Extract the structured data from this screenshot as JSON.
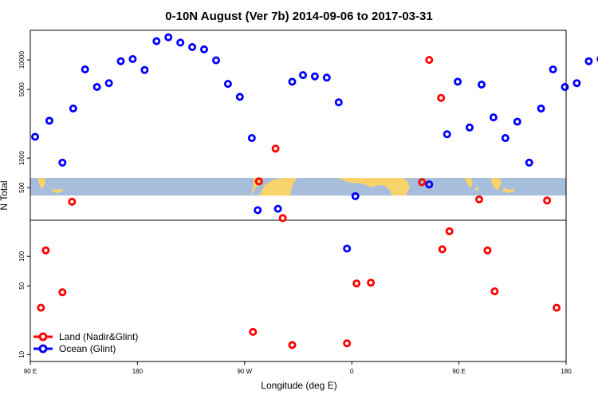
{
  "chart_data": {
    "type": "scatter",
    "title": "0-10N August (Ver 7b)   2014-09-06 to 2017-03-31",
    "xlabel": "Longitude (deg E)",
    "ylabel": "N Total",
    "yscale": "log",
    "xlim": [
      90,
      540
    ],
    "ylim": [
      8.5,
      20000
    ],
    "x_ticks": [
      {
        "value": 90,
        "label": "90 E"
      },
      {
        "value": 180,
        "label": "180"
      },
      {
        "value": 270,
        "label": "90 W"
      },
      {
        "value": 360,
        "label": "0"
      },
      {
        "value": 450,
        "label": "90 E"
      },
      {
        "value": 540,
        "label": "180"
      }
    ],
    "y_ticks": [
      {
        "value": 10,
        "label": "10"
      },
      {
        "value": 50,
        "label": "50"
      },
      {
        "value": 100,
        "label": "100"
      },
      {
        "value": 500,
        "label": "500"
      },
      {
        "value": 1000,
        "label": "1000"
      },
      {
        "value": 5000,
        "label": "5000"
      },
      {
        "value": 10000,
        "label": "10000"
      }
    ],
    "series": [
      {
        "name": "Land (Nadir&Glint)",
        "color": "#ff0000",
        "points": [
          [
            99,
            30
          ],
          [
            103,
            115
          ],
          [
            117,
            43
          ],
          [
            125,
            360
          ],
          [
            277,
            17
          ],
          [
            282,
            580
          ],
          [
            302,
            245
          ],
          [
            296,
            1250
          ],
          [
            310,
            12.5
          ],
          [
            356,
            13
          ],
          [
            364,
            53
          ],
          [
            376,
            54
          ],
          [
            419,
            570
          ],
          [
            425,
            10000
          ],
          [
            435,
            4100
          ],
          [
            442,
            180
          ],
          [
            467,
            380
          ],
          [
            524,
            370
          ],
          [
            532,
            30
          ],
          [
            436,
            118
          ],
          [
            474,
            115
          ],
          [
            480,
            44
          ]
        ]
      },
      {
        "name": "Ocean (Glint)",
        "color": "#0000ff",
        "points": [
          [
            94,
            1650
          ],
          [
            106,
            2400
          ],
          [
            117,
            900
          ],
          [
            126,
            3200
          ],
          [
            136,
            8000
          ],
          [
            146,
            5300
          ],
          [
            156,
            5800
          ],
          [
            166,
            9700
          ],
          [
            176,
            10200
          ],
          [
            186,
            7900
          ],
          [
            196,
            15500
          ],
          [
            206,
            17000
          ],
          [
            216,
            15000
          ],
          [
            226,
            13500
          ],
          [
            236,
            12800
          ],
          [
            246,
            9900
          ],
          [
            256,
            5700
          ],
          [
            266,
            4200
          ],
          [
            276,
            1600
          ],
          [
            281,
            295
          ],
          [
            298,
            305
          ],
          [
            310,
            6000
          ],
          [
            319,
            7000
          ],
          [
            329,
            6800
          ],
          [
            339,
            6600
          ],
          [
            349,
            3700
          ],
          [
            356,
            120
          ],
          [
            363,
            410
          ],
          [
            425,
            540
          ],
          [
            440,
            1750
          ],
          [
            449,
            6000
          ],
          [
            459,
            2050
          ],
          [
            469,
            5600
          ],
          [
            479,
            2600
          ],
          [
            489,
            1600
          ],
          [
            499,
            2350
          ],
          [
            509,
            900
          ],
          [
            519,
            3200
          ],
          [
            529,
            8000
          ],
          [
            539,
            5300
          ],
          [
            549,
            5800
          ],
          [
            559,
            9700
          ],
          [
            569,
            10200
          ]
        ]
      }
    ],
    "legend_position": "bottom-left"
  },
  "map_band": {
    "ocean_color": "#a6bddb",
    "land_color": "#f8d26a"
  }
}
